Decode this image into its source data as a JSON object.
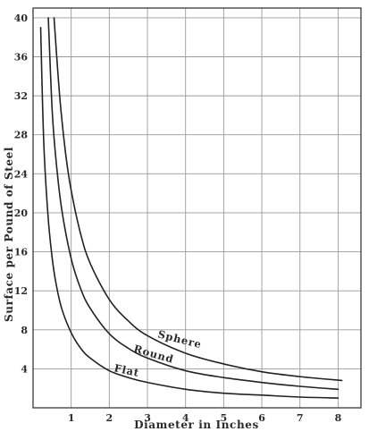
{
  "chart_data": {
    "type": "line",
    "title": "",
    "xlabel": "Diameter in Inches",
    "ylabel": "Surface per Pound of Steel",
    "xlim": [
      0,
      8.6
    ],
    "ylim": [
      0,
      41
    ],
    "x_ticks": [
      {
        "value": 1,
        "label": "1"
      },
      {
        "value": 2,
        "label": "2"
      },
      {
        "value": 3,
        "label": "3"
      },
      {
        "value": 4,
        "label": "4"
      },
      {
        "value": 5,
        "label": "5"
      },
      {
        "value": 6,
        "label": "6"
      },
      {
        "value": 7,
        "label": "7"
      },
      {
        "value": 8,
        "label": "8"
      }
    ],
    "y_ticks": [
      {
        "value": 4,
        "label": "4"
      },
      {
        "value": 8,
        "label": "8"
      },
      {
        "value": 12,
        "label": "12"
      },
      {
        "value": 16,
        "label": "16"
      },
      {
        "value": 20,
        "label": "20"
      },
      {
        "value": 24,
        "label": "24"
      },
      {
        "value": 28,
        "label": "28"
      },
      {
        "value": 32,
        "label": "32"
      },
      {
        "value": 36,
        "label": "36"
      },
      {
        "value": 40,
        "label": "40"
      }
    ],
    "grid": true,
    "series": [
      {
        "name": "Sphere",
        "x": [
          0.55,
          0.7,
          0.85,
          1.0,
          1.25,
          1.5,
          2.0,
          2.5,
          3.0,
          4.0,
          5.0,
          6.0,
          7.0,
          8.1
        ],
        "y": [
          40.0,
          31.9,
          26.2,
          22.3,
          17.8,
          14.8,
          11.1,
          8.9,
          7.4,
          5.6,
          4.5,
          3.7,
          3.2,
          2.8
        ]
      },
      {
        "name": "Round",
        "x": [
          0.4,
          0.5,
          0.6,
          0.75,
          1.0,
          1.25,
          1.5,
          2.0,
          2.5,
          3.0,
          4.0,
          5.0,
          6.0,
          7.0,
          8.0
        ],
        "y": [
          40.0,
          30.6,
          25.5,
          20.4,
          15.3,
          12.2,
          10.2,
          7.6,
          6.1,
          5.1,
          3.8,
          3.1,
          2.6,
          2.2,
          1.9
        ]
      },
      {
        "name": "Flat",
        "x": [
          0.2,
          0.25,
          0.3,
          0.4,
          0.5,
          0.6,
          0.75,
          1.0,
          1.25,
          1.5,
          2.0,
          2.5,
          3.0,
          4.0,
          5.0,
          6.0,
          7.0,
          8.0
        ],
        "y": [
          39.0,
          31.0,
          25.5,
          19.3,
          15.4,
          12.8,
          10.2,
          7.7,
          6.1,
          5.1,
          3.8,
          3.1,
          2.6,
          1.9,
          1.5,
          1.3,
          1.1,
          1.0
        ]
      }
    ]
  }
}
